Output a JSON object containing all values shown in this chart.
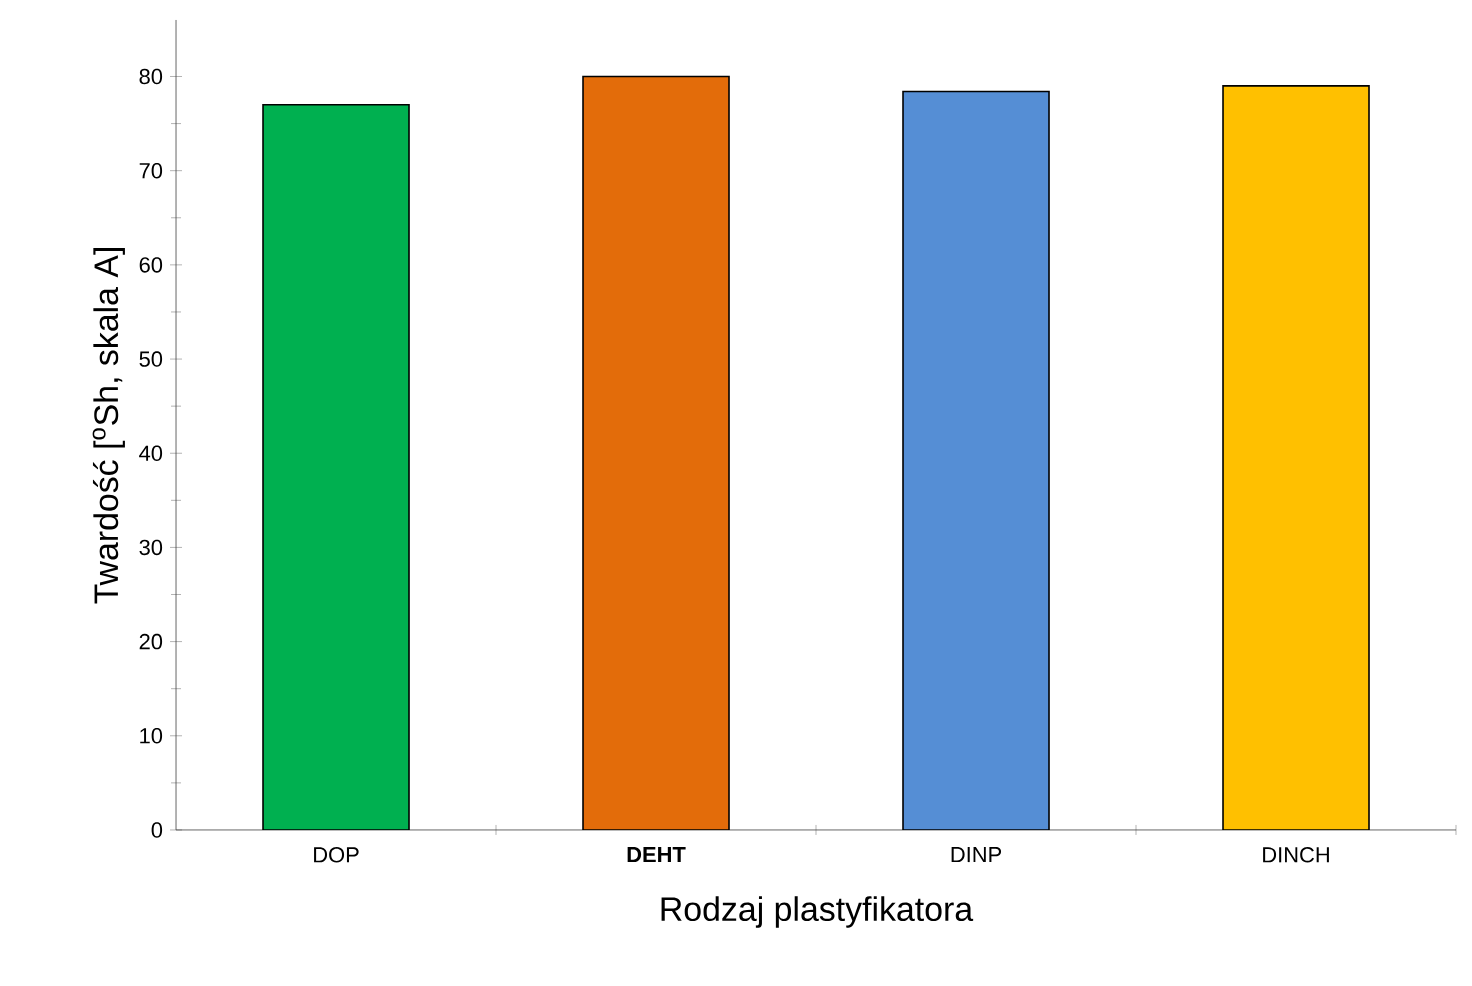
{
  "chart_data": {
    "type": "bar",
    "xlabel": "Rodzaj plastyfikatora",
    "ylabel": "Twardość  [$^{o}$Sh, skala A]",
    "categories": [
      "DOP",
      "**DEHT**",
      "DINP",
      "DINCH"
    ],
    "values": [
      77,
      80,
      78.4,
      79
    ],
    "colors": [
      "#00b050",
      "#e36c0a",
      "#558ed5",
      "#ffc000"
    ],
    "ylim": [
      0,
      86
    ],
    "yticks": [
      0,
      10,
      20,
      30,
      40,
      50,
      60,
      70,
      80
    ]
  }
}
